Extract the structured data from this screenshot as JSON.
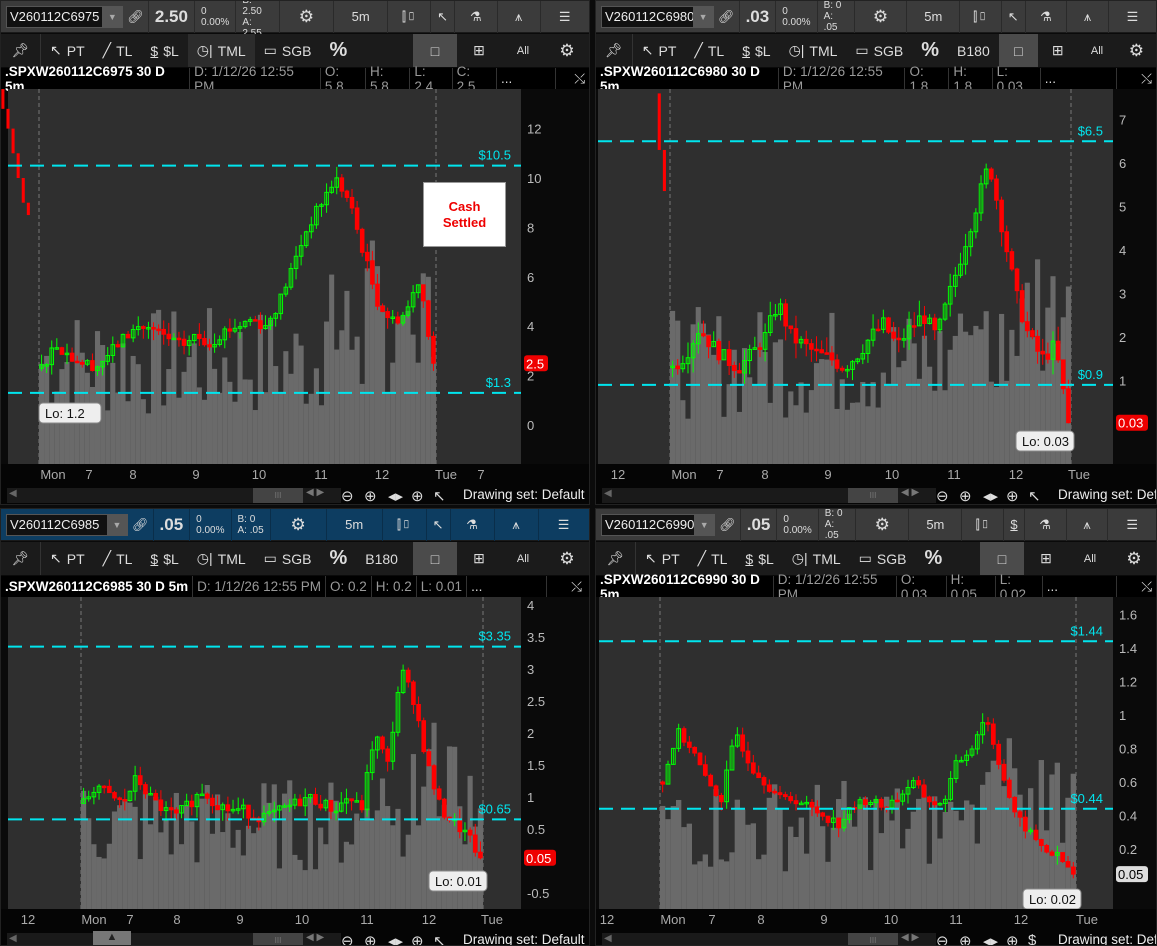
{
  "colors": {
    "up": "#00ff00",
    "down": "#ff0000",
    "price_line": "#00e5ee",
    "volume": "#6a6a6a",
    "plot_bg": "#2f2f2f",
    "active_toolbar": "#0d3d61"
  },
  "common": {
    "toolbar_icons": [
      "link-icon",
      "gear-icon",
      "candle-icon",
      "cursor-icon",
      "flask-icon",
      "drawing-icon",
      "list-icon"
    ],
    "row2": {
      "pt": "PT",
      "tl": "TL",
      "sl": "$L",
      "tml": "TML",
      "sgb": "SGB",
      "pct": "%",
      "all": "All"
    },
    "drawing_set": "Drawing set: Default",
    "ellipsis": "..."
  },
  "panels": [
    {
      "symbol_box": "V260112C6975",
      "last": "2.50",
      "change": "0",
      "change_pct": "0.00%",
      "bid": "B: 2.50",
      "ask": "A: 2.55",
      "timeframe": "5m",
      "b180": "",
      "active": false,
      "tool_icon": "cursor",
      "header": {
        "title": ".SPXW260112C6975 30 D 5m",
        "date": "D: 1/12/26 12:55 PM",
        "o": "O: 5.8",
        "h": "H: 5.8",
        "l": "L: 2.4",
        "c": "C: 2.5"
      },
      "annotation": {
        "line1": "Cash",
        "line2": "Settled"
      }
    },
    {
      "symbol_box": "V260112C6980",
      "last": ".03",
      "change": "0",
      "change_pct": "0.00%",
      "bid": "B: 0",
      "ask": "A: .05",
      "timeframe": "5m",
      "b180": "B180",
      "active": false,
      "tool_icon": "cursor",
      "header": {
        "title": ".SPXW260112C6980 30 D 5m",
        "date": "D: 1/12/26 12:55 PM",
        "o": "O: 1.8",
        "h": "H: 1.8",
        "l": "L: 0.03",
        "c": ""
      }
    },
    {
      "symbol_box": "V260112C6985",
      "last": ".05",
      "change": "0",
      "change_pct": "0.00%",
      "bid": "B: 0",
      "ask": "A: .05",
      "timeframe": "5m",
      "b180": "B180",
      "active": true,
      "tool_icon": "cursor",
      "header": {
        "title": ".SPXW260112C6985 30 D 5m",
        "date": "D: 1/12/26 12:55 PM",
        "o": "O: 0.2",
        "h": "H: 0.2",
        "l": "L: 0.01",
        "c": ""
      }
    },
    {
      "symbol_box": "V260112C6990",
      "last": ".05",
      "change": "0",
      "change_pct": "0.00%",
      "bid": "B: 0",
      "ask": "A: .05",
      "timeframe": "5m",
      "b180": "",
      "active": false,
      "tool_icon": "dollar",
      "header": {
        "title": ".SPXW260112C6990 30 D 5m",
        "date": "D: 1/12/26 12:55 PM",
        "o": "O: 0.03",
        "h": "H: 0.05",
        "l": "L: 0.02",
        "c": ""
      }
    }
  ],
  "chart_data": [
    {
      "type": "candlestick",
      "y_ticks": [
        "0",
        "2",
        "4",
        "6",
        "8",
        "10",
        "12"
      ],
      "y_tick_values": [
        0,
        2,
        4,
        6,
        8,
        10,
        12
      ],
      "x_ticks": [
        "Mon",
        "7",
        "8",
        "9",
        "10",
        "11",
        "12",
        "Tue",
        "7"
      ],
      "price_lines": [
        {
          "label": "$10.5",
          "value": 10.5
        },
        {
          "label": "$1.3",
          "value": 1.3
        }
      ],
      "last_price": {
        "label": "2.5",
        "value": 2.5,
        "style": "red"
      },
      "low_label": "Lo: 1.2",
      "prior_session": [
        13.6,
        12.8,
        12.0,
        11.0,
        10.0,
        9.0,
        8.5
      ],
      "closes": [
        2.3,
        3.3,
        2.8,
        2.5,
        2.4,
        3.0,
        3.6,
        4.0,
        3.8,
        3.5,
        3.2,
        3.6,
        3.3,
        3.8,
        4.0,
        4.3,
        4.0,
        5.0,
        6.5,
        8.0,
        9.0,
        10.0,
        9.0,
        7.0,
        5.0,
        4.2,
        4.5,
        6.0,
        2.5
      ]
    },
    {
      "type": "candlestick",
      "y_ticks": [
        "1",
        "2",
        "3",
        "4",
        "5",
        "6",
        "7"
      ],
      "y_tick_values": [
        1,
        2,
        3,
        4,
        5,
        6,
        7
      ],
      "x_ticks": [
        "12",
        "Mon",
        "7",
        "8",
        "9",
        "10",
        "11",
        "12",
        "Tue"
      ],
      "price_lines": [
        {
          "label": "$6.5",
          "value": 6.5
        },
        {
          "label": "$0.9",
          "value": 0.9
        }
      ],
      "last_price": {
        "label": "0.03",
        "value": 0.03,
        "style": "red"
      },
      "low_label": "Lo: 0.03",
      "prior_session": [
        7.6,
        6.3
      ],
      "closes": [
        1.3,
        1.6,
        2.2,
        1.8,
        1.5,
        1.3,
        1.6,
        2.0,
        2.8,
        2.0,
        1.8,
        1.6,
        1.5,
        1.3,
        1.6,
        2.0,
        2.3,
        1.8,
        2.2,
        2.5,
        2.0,
        3.0,
        4.0,
        5.0,
        6.0,
        4.5,
        3.0,
        2.0,
        1.5,
        1.8,
        0.03
      ]
    },
    {
      "type": "candlestick",
      "y_ticks": [
        "-0.5",
        "0.5",
        "1",
        "1.5",
        "2",
        "2.5",
        "3",
        "3.5",
        "4"
      ],
      "y_tick_values": [
        -0.5,
        0.5,
        1,
        1.5,
        2,
        2.5,
        3,
        3.5,
        4
      ],
      "x_ticks": [
        "12",
        "Mon",
        "7",
        "8",
        "9",
        "10",
        "11",
        "12",
        "Tue"
      ],
      "price_lines": [
        {
          "label": "$3.35",
          "value": 3.35
        },
        {
          "label": "$0.65",
          "value": 0.65
        }
      ],
      "last_price": {
        "label": "0.05",
        "value": 0.05,
        "style": "red"
      },
      "low_label": "Lo: 0.01",
      "prior_session": [],
      "closes": [
        0.9,
        1.2,
        1.0,
        0.9,
        1.3,
        1.0,
        0.8,
        0.7,
        0.9,
        1.1,
        0.9,
        0.8,
        0.8,
        0.7,
        0.7,
        0.8,
        0.9,
        1.0,
        0.9,
        0.8,
        1.0,
        0.8,
        2.0,
        1.5,
        3.0,
        2.5,
        1.5,
        0.8,
        0.6,
        0.4,
        0.05
      ]
    },
    {
      "type": "candlestick",
      "y_ticks": [
        "0.2",
        "0.4",
        "0.6",
        "0.8",
        "1",
        "1.2",
        "1.4",
        "1.6"
      ],
      "y_tick_values": [
        0.2,
        0.4,
        0.6,
        0.8,
        1,
        1.2,
        1.4,
        1.6
      ],
      "x_ticks": [
        "12",
        "Mon",
        "7",
        "8",
        "9",
        "10",
        "11",
        "12",
        "Tue"
      ],
      "price_lines": [
        {
          "label": "$1.44",
          "value": 1.44
        },
        {
          "label": "$0.44",
          "value": 0.44
        }
      ],
      "last_price": {
        "label": "0.05",
        "value": 0.05,
        "style": "gray"
      },
      "low_label": "Lo: 0.02",
      "prior_session": [],
      "closes": [
        0.6,
        0.9,
        0.8,
        0.6,
        0.5,
        0.9,
        0.7,
        0.6,
        0.5,
        0.5,
        0.45,
        0.4,
        0.35,
        0.45,
        0.5,
        0.45,
        0.5,
        0.6,
        0.5,
        0.45,
        0.7,
        0.8,
        1.0,
        0.7,
        0.4,
        0.3,
        0.2,
        0.15,
        0.05
      ]
    }
  ]
}
